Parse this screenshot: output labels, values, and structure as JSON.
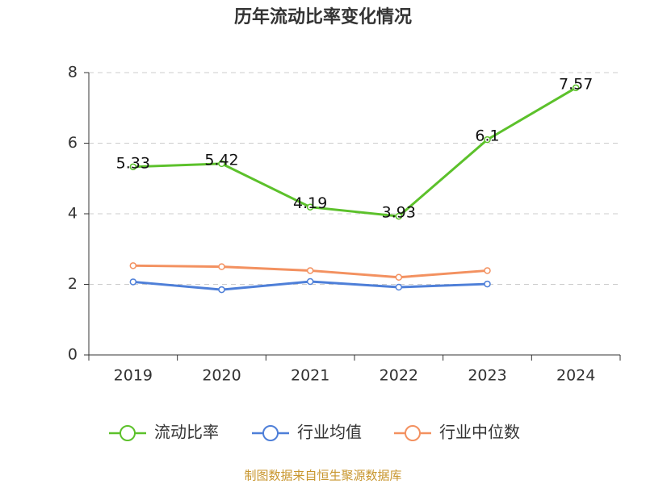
{
  "chart_data": {
    "type": "line",
    "title": "历年流动比率变化情况",
    "categories": [
      "2019",
      "2020",
      "2021",
      "2022",
      "2023",
      "2024"
    ],
    "series": [
      {
        "name": "流动比率",
        "color": "#5cc12b",
        "values": [
          5.33,
          5.42,
          4.19,
          3.93,
          6.1,
          7.57
        ],
        "data_labels": true
      },
      {
        "name": "行业均值",
        "color": "#4e7fd8",
        "values": [
          2.07,
          1.85,
          2.08,
          1.92,
          2.01,
          null
        ]
      },
      {
        "name": "行业中位数",
        "color": "#f39160",
        "values": [
          2.53,
          2.5,
          2.39,
          2.2,
          2.39,
          null
        ]
      }
    ],
    "ylim": [
      0,
      8
    ],
    "yticks": [
      0,
      2,
      4,
      6,
      8
    ],
    "grid": true,
    "source": "制图数据来自恒生聚源数据库"
  }
}
